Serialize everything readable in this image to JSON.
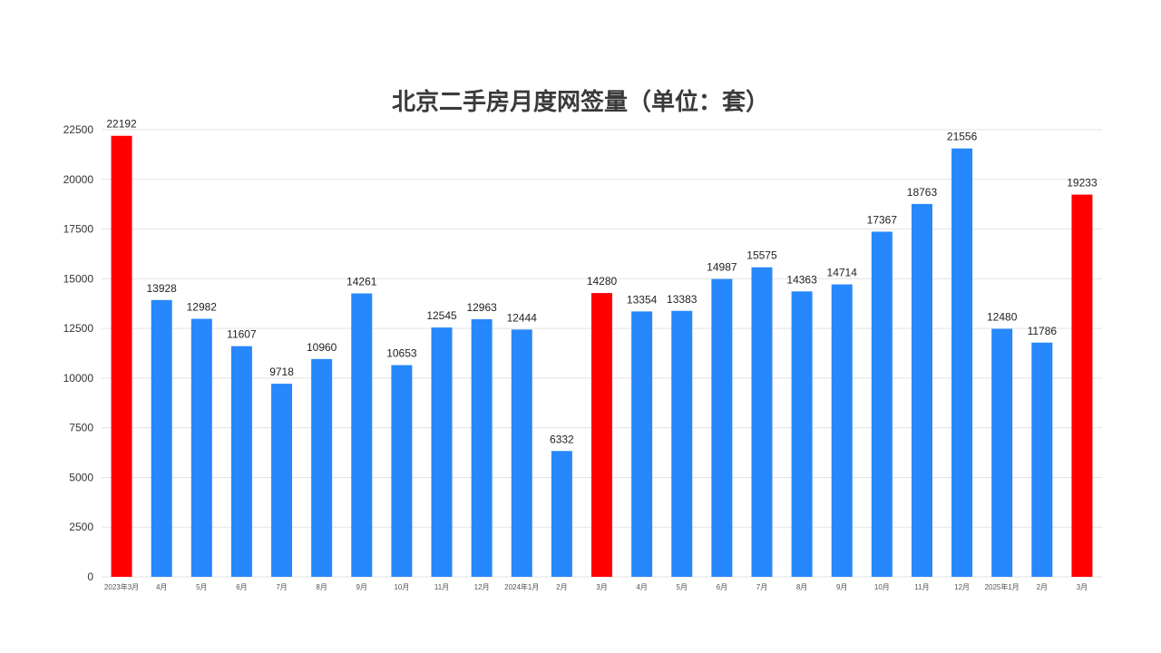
{
  "chart_data": {
    "type": "bar",
    "title": "北京二手房月度网签量（单位：套）",
    "xlabel": "",
    "ylabel": "",
    "ylim": [
      0,
      22500
    ],
    "yticks": [
      0,
      2500,
      5000,
      7500,
      10000,
      12500,
      15000,
      17500,
      20000,
      22500
    ],
    "grid": true,
    "categories": [
      "2023年3月",
      "4月",
      "5月",
      "6月",
      "7月",
      "8月",
      "9月",
      "10月",
      "11月",
      "12月",
      "2024年1月",
      "2月",
      "3月",
      "4月",
      "5月",
      "6月",
      "7月",
      "8月",
      "9月",
      "10月",
      "11月",
      "12月",
      "2025年1月",
      "2月",
      "3月"
    ],
    "values": [
      22192,
      13928,
      12982,
      11607,
      9718,
      10960,
      14261,
      10653,
      12545,
      12963,
      12444,
      6332,
      14280,
      13354,
      13383,
      14987,
      15575,
      14363,
      14714,
      17367,
      18763,
      21556,
      12480,
      11786,
      19233
    ],
    "highlight_indices": [
      0,
      12,
      24
    ],
    "colors": {
      "default": "#2688fc",
      "highlight": "#ff0000"
    },
    "data_labels": true
  }
}
